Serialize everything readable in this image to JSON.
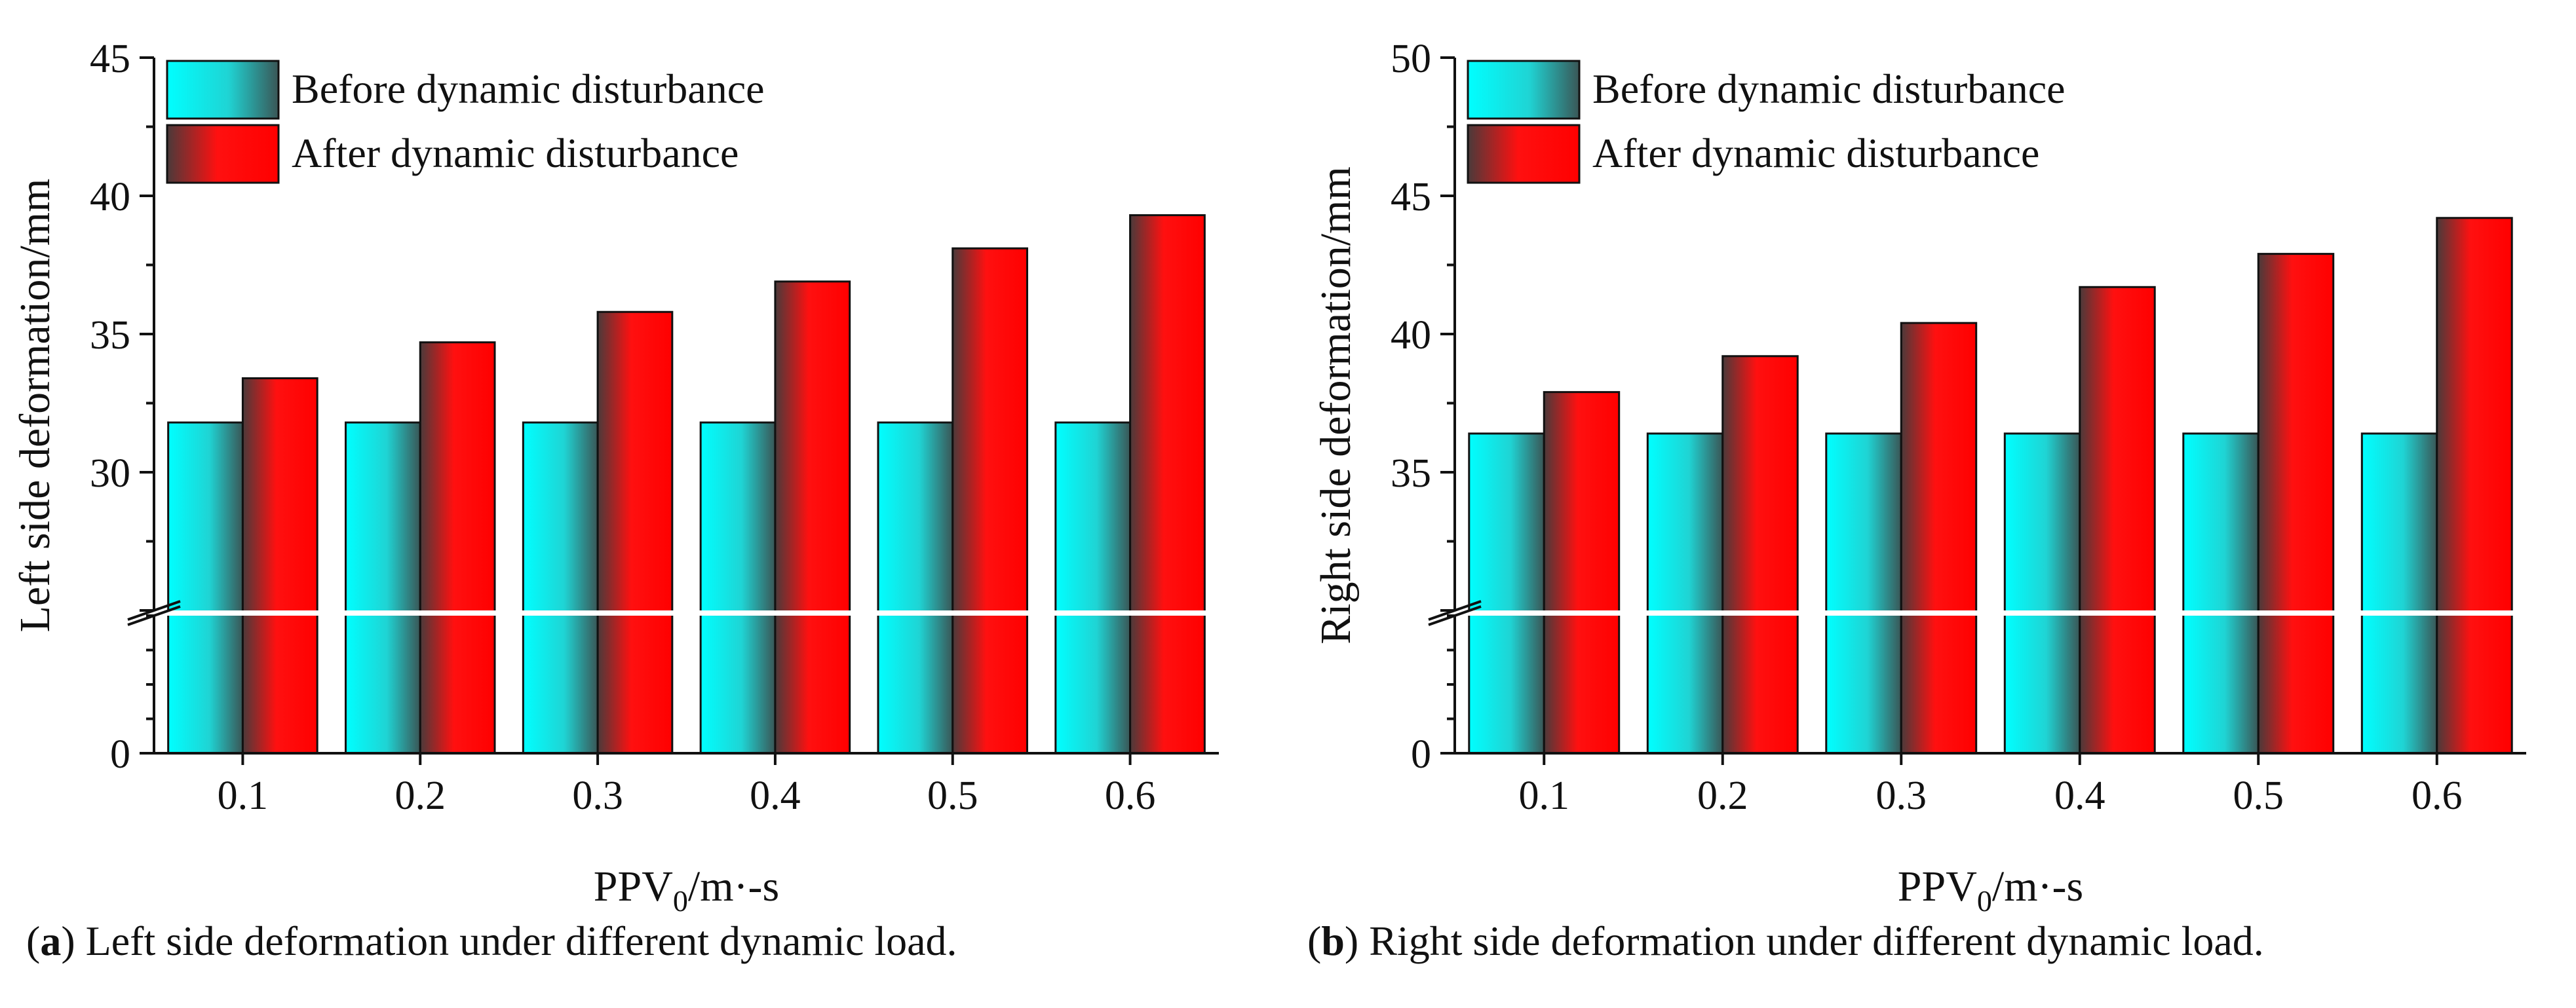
{
  "chart_data": [
    {
      "type": "bar",
      "panel": "a",
      "ylabel": "Left side deformation/mm",
      "xlabel_main": "PPV",
      "xlabel_sub": "0",
      "xlabel_rest": "/m·-s",
      "categories": [
        "0.1",
        "0.2",
        "0.3",
        "0.4",
        "0.5",
        "0.6"
      ],
      "series": [
        {
          "name": "Before dynamic disturbance",
          "values": [
            31.8,
            31.8,
            31.8,
            31.8,
            31.8,
            31.8
          ]
        },
        {
          "name": "After dynamic disturbance",
          "values": [
            33.4,
            34.7,
            35.8,
            36.9,
            38.1,
            39.3
          ]
        }
      ],
      "axis_break": [
        0,
        25
      ],
      "ylim_upper": [
        25,
        45
      ],
      "yticks_upper": [
        "30",
        "35",
        "40",
        "45"
      ],
      "ytick_zero": "0",
      "legend": "top-left",
      "caption_label": "a",
      "caption_text": " Left side deformation under different dynamic load."
    },
    {
      "type": "bar",
      "panel": "b",
      "ylabel": "Right side deformation/mm",
      "xlabel_main": "PPV",
      "xlabel_sub": "0",
      "xlabel_rest": "/m·-s",
      "categories": [
        "0.1",
        "0.2",
        "0.3",
        "0.4",
        "0.5",
        "0.6"
      ],
      "series": [
        {
          "name": "Before dynamic disturbance",
          "values": [
            36.4,
            36.4,
            36.4,
            36.4,
            36.4,
            36.4
          ]
        },
        {
          "name": "After dynamic disturbance",
          "values": [
            37.9,
            39.2,
            40.4,
            41.7,
            42.9,
            44.2
          ]
        }
      ],
      "axis_break": [
        0,
        30
      ],
      "ylim_upper": [
        30,
        50
      ],
      "yticks_upper": [
        "35",
        "40",
        "45",
        "50"
      ],
      "ytick_zero": "0",
      "legend": "top-left",
      "caption_label": "b",
      "caption_text": " Right side deformation under different dynamic load."
    }
  ]
}
